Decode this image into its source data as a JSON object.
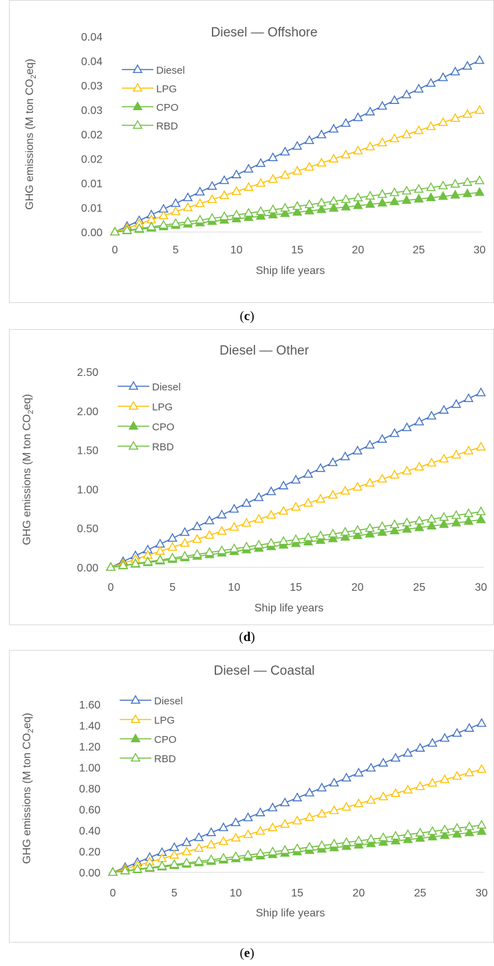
{
  "colors": {
    "diesel": "#4472c4",
    "lpg": "#ffc000",
    "cpo": "#70c040",
    "rbd": "#70c040",
    "axis": "#d9d9d9",
    "text": "#595959"
  },
  "chart_data": [
    {
      "type": "line",
      "title": "Diesel — Offshore",
      "xlabel": "Ship life years",
      "ylabel": "GHG emissions (M ton CO2eq)",
      "ylabel_pre": "GHG emissions (M ton CO",
      "ylabel_sub": "2",
      "ylabel_post": "eq)",
      "xlim": [
        0,
        30
      ],
      "ylim": [
        0,
        0.04
      ],
      "x_ticks": [
        "0",
        "5",
        "10",
        "15",
        "20",
        "25",
        "30"
      ],
      "y_ticks": [
        "0.00",
        "0.01",
        "0.01",
        "0.02",
        "0.02",
        "0.03",
        "0.03",
        "0.04",
        "0.04"
      ],
      "legend_position": "top-left",
      "x": [
        0,
        1,
        2,
        3,
        4,
        5,
        6,
        7,
        8,
        9,
        10,
        11,
        12,
        13,
        14,
        15,
        16,
        17,
        18,
        19,
        20,
        21,
        22,
        23,
        24,
        25,
        26,
        27,
        28,
        29,
        30
      ],
      "series": [
        {
          "name": "Diesel",
          "slope": 0.00117,
          "marker": "open-triangle",
          "color": "#4472c4"
        },
        {
          "name": "LPG",
          "slope": 0.00083,
          "marker": "open-triangle",
          "color": "#ffc000"
        },
        {
          "name": "CPO",
          "slope": 0.00027,
          "marker": "filled-triangle",
          "color": "#70c040"
        },
        {
          "name": "RBD",
          "slope": 0.00035,
          "marker": "open-triangle",
          "color": "#70c040"
        }
      ],
      "caption": "c"
    },
    {
      "type": "line",
      "title": "Diesel — Other",
      "xlabel": "Ship life years",
      "ylabel": "GHG emissions (M ton CO2eq)",
      "ylabel_pre": "GHG emissions (M ton CO",
      "ylabel_sub": "2",
      "ylabel_post": "eq)",
      "xlim": [
        0,
        30
      ],
      "ylim": [
        0,
        2.5
      ],
      "x_ticks": [
        "0",
        "5",
        "10",
        "15",
        "20",
        "25",
        "30"
      ],
      "y_ticks": [
        "0.00",
        "0.50",
        "1.00",
        "1.50",
        "2.00",
        "2.50"
      ],
      "legend_position": "top-left",
      "x": [
        0,
        1,
        2,
        3,
        4,
        5,
        6,
        7,
        8,
        9,
        10,
        11,
        12,
        13,
        14,
        15,
        16,
        17,
        18,
        19,
        20,
        21,
        22,
        23,
        24,
        25,
        26,
        27,
        28,
        29,
        30
      ],
      "series": [
        {
          "name": "Diesel",
          "slope": 0.0744,
          "marker": "open-triangle",
          "color": "#4472c4"
        },
        {
          "name": "LPG",
          "slope": 0.0513,
          "marker": "open-triangle",
          "color": "#ffc000"
        },
        {
          "name": "CPO",
          "slope": 0.0203,
          "marker": "filled-triangle",
          "color": "#70c040"
        },
        {
          "name": "RBD",
          "slope": 0.0237,
          "marker": "open-triangle",
          "color": "#70c040"
        }
      ],
      "caption": "d"
    },
    {
      "type": "line",
      "title": "Diesel — Coastal",
      "xlabel": "Ship life years",
      "ylabel": "GHG emissions (M ton CO2eq)",
      "ylabel_pre": "GHG emissions (M ton CO",
      "ylabel_sub": "2",
      "ylabel_post": "eq)",
      "xlim": [
        0,
        30
      ],
      "ylim": [
        0,
        1.6
      ],
      "x_ticks": [
        "0",
        "5",
        "10",
        "15",
        "20",
        "25",
        "30"
      ],
      "y_ticks": [
        "0.00",
        "0.20",
        "0.40",
        "0.60",
        "0.80",
        "1.00",
        "1.20",
        "1.40",
        "1.60"
      ],
      "legend_position": "top-left",
      "x": [
        0,
        1,
        2,
        3,
        4,
        5,
        6,
        7,
        8,
        9,
        10,
        11,
        12,
        13,
        14,
        15,
        16,
        17,
        18,
        19,
        20,
        21,
        22,
        23,
        24,
        25,
        26,
        27,
        28,
        29,
        30
      ],
      "series": [
        {
          "name": "Diesel",
          "slope": 0.0473,
          "marker": "open-triangle",
          "color": "#4472c4"
        },
        {
          "name": "LPG",
          "slope": 0.0327,
          "marker": "open-triangle",
          "color": "#ffc000"
        },
        {
          "name": "CPO",
          "slope": 0.013,
          "marker": "filled-triangle",
          "color": "#70c040"
        },
        {
          "name": "RBD",
          "slope": 0.015,
          "marker": "open-triangle",
          "color": "#70c040"
        }
      ],
      "caption": "e"
    }
  ]
}
